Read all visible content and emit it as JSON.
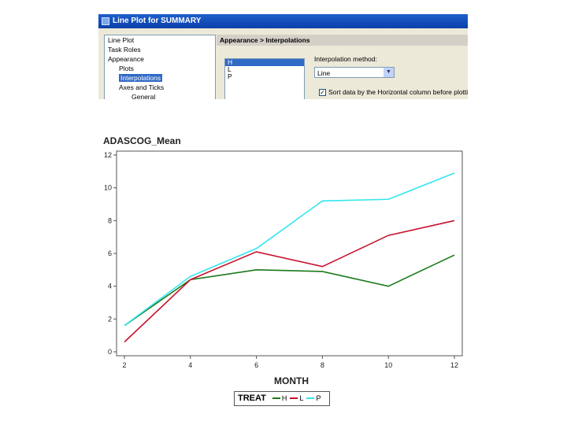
{
  "dialog": {
    "title": "Line Plot for SUMMARY",
    "tree": [
      {
        "label": "Line Plot",
        "level": 1
      },
      {
        "label": "Task Roles",
        "level": 1
      },
      {
        "label": "Appearance",
        "level": 1
      },
      {
        "label": "Plots",
        "level": 2
      },
      {
        "label": "Interpolations",
        "level": 2,
        "selected": true
      },
      {
        "label": "Axes and Ticks",
        "level": 2
      },
      {
        "label": "General",
        "level": 3
      }
    ],
    "panel_title": "Appearance > Interpolations",
    "list_items": [
      "H",
      "L",
      "P"
    ],
    "interp_label": "Interpolation method:",
    "interp_value": "Line",
    "sort_checkbox_label": "Sort data by the Horizontal column before plotting"
  },
  "chart_data": {
    "type": "line",
    "title": "ADASCOG_Mean",
    "xlabel": "MONTH",
    "x": [
      2,
      4,
      6,
      8,
      10,
      12
    ],
    "x_tick_labels": [
      "2",
      "4",
      "6",
      "8",
      "10",
      "12"
    ],
    "ylim": [
      0,
      12
    ],
    "y_ticks": [
      0,
      2,
      4,
      6,
      8,
      10,
      12
    ],
    "y_tick_labels": [
      "0",
      "2",
      "4",
      "6",
      "8",
      "10",
      "12"
    ],
    "legend_title": "TREAT",
    "series": [
      {
        "name": "H",
        "color": "#1a7a1a",
        "values": [
          1.6,
          4.4,
          5.0,
          4.9,
          4.0,
          5.9
        ]
      },
      {
        "name": "L",
        "color": "#c8102e",
        "values": [
          0.6,
          4.4,
          6.1,
          5.2,
          7.1,
          8.0
        ]
      },
      {
        "name": "P",
        "color": "#33e6f0",
        "values": [
          1.6,
          4.6,
          6.3,
          9.2,
          9.3,
          10.9
        ]
      }
    ]
  }
}
